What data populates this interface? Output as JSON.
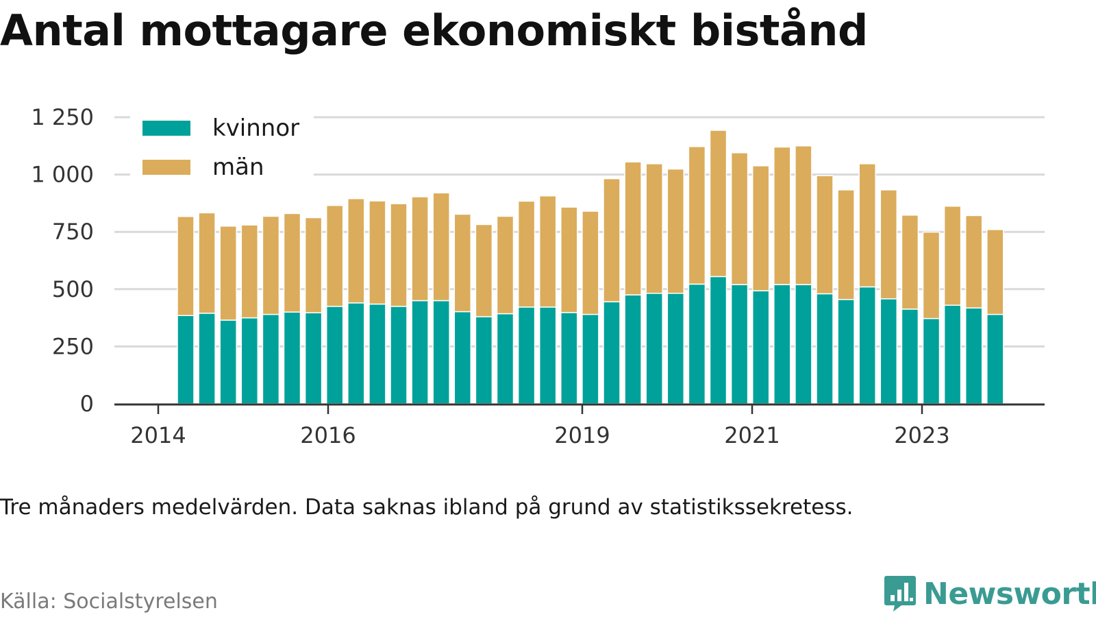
{
  "title": "Antal mottagare ekonomiskt bistånd",
  "note": "Tre månaders medelvärden. Data saknas ibland på grund av statistikssekretess.",
  "source": "Källa: Socialstyrelsen",
  "brand": {
    "name": "Newsworthy",
    "icon": "bar-chart-speech-bubble-icon",
    "color": "#3a9b92"
  },
  "chart_data": {
    "type": "bar",
    "stacked": true,
    "title": "Antal mottagare ekonomiskt bistånd",
    "xlabel": "",
    "ylabel": "",
    "ylim": [
      0,
      1250
    ],
    "yticks": [
      0,
      250,
      500,
      750,
      1000,
      1250
    ],
    "ytick_labels": [
      "0",
      "250",
      "500",
      "750",
      "1 000",
      "1 250"
    ],
    "xtick_labels": [
      "2014",
      "2016",
      "2019",
      "2021",
      "2023"
    ],
    "grid": true,
    "legend_position": "top-left",
    "series": [
      {
        "name": "kvinnor",
        "color": "#00a19a",
        "values": [
          385,
          395,
          365,
          375,
          390,
          400,
          397,
          425,
          440,
          435,
          425,
          450,
          450,
          402,
          380,
          393,
          422,
          422,
          398,
          390,
          445,
          475,
          482,
          482,
          522,
          555,
          520,
          493,
          520,
          520,
          480,
          455,
          510,
          458,
          413,
          372,
          430,
          418,
          390
        ]
      },
      {
        "name": "män",
        "color": "#dbac5b",
        "values": [
          432,
          438,
          410,
          405,
          428,
          430,
          415,
          440,
          455,
          450,
          448,
          453,
          470,
          425,
          402,
          425,
          462,
          485,
          460,
          450,
          537,
          580,
          565,
          542,
          600,
          638,
          575,
          545,
          600,
          605,
          515,
          478,
          537,
          475,
          410,
          377,
          432,
          403,
          370
        ]
      }
    ]
  }
}
